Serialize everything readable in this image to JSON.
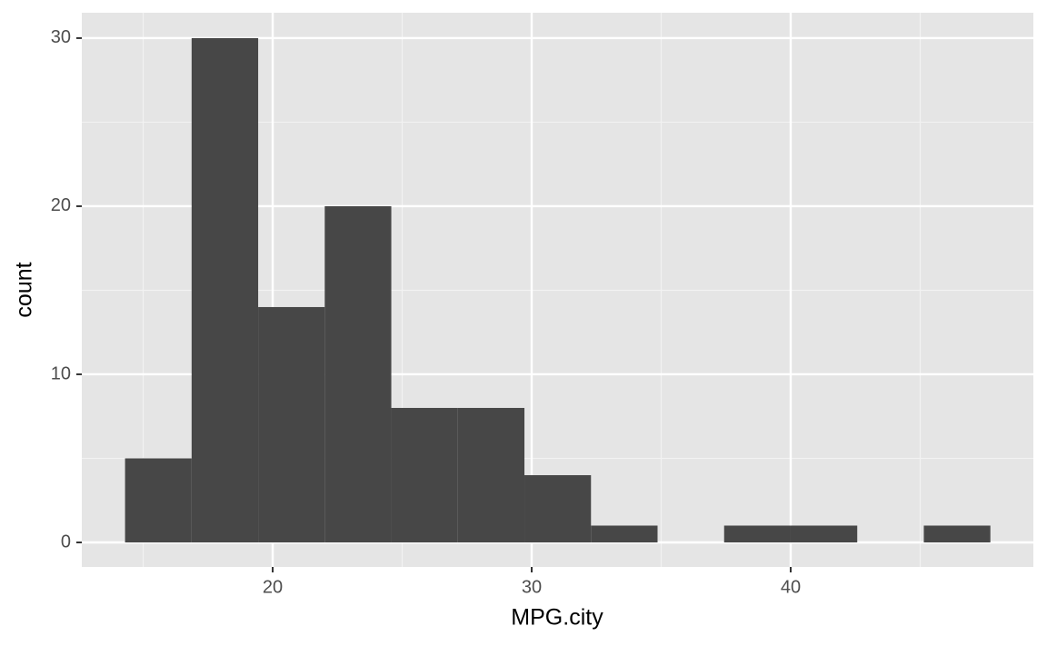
{
  "chart_data": {
    "type": "histogram",
    "bins": [
      14.3,
      16.87,
      19.44,
      22.01,
      24.58,
      27.15,
      29.72,
      32.29,
      34.86,
      37.43,
      40.0,
      42.57,
      45.14,
      47.71
    ],
    "counts": [
      5,
      30,
      14,
      20,
      8,
      8,
      4,
      1,
      0,
      1,
      1,
      0,
      1
    ],
    "color": "#474747",
    "xlabel": "MPG.city",
    "ylabel": "count",
    "xlim": [
      12.63,
      49.37
    ],
    "xticks": [
      20,
      30,
      40
    ],
    "ylim": [
      -1.46,
      31.51
    ],
    "yticks": [
      0,
      10,
      20,
      30
    ],
    "grid": true
  }
}
